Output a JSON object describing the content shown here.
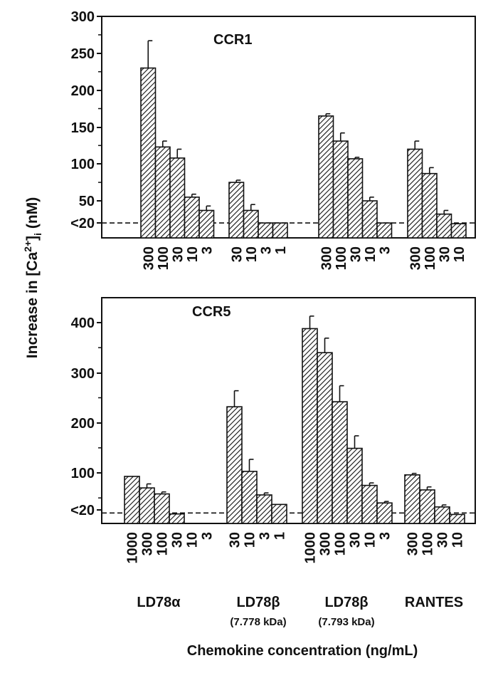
{
  "chart_data": [
    {
      "type": "bar",
      "title": "CCR1",
      "y_ticks": [
        "300",
        "250",
        "200",
        "150",
        "100",
        "50",
        "<20"
      ],
      "baseline_label": "<20",
      "ylim": [
        0,
        300
      ],
      "groups": [
        {
          "name": "LD78α",
          "concentrations": [
            "300",
            "100",
            "30",
            "10",
            "3"
          ],
          "values": [
            230,
            123,
            108,
            55,
            37
          ],
          "errors": [
            37,
            8,
            12,
            4,
            6
          ]
        },
        {
          "name": "LD78β (7.778 kDa)",
          "concentrations": [
            "30",
            "10",
            "3",
            "1"
          ],
          "values": [
            75,
            37,
            20,
            20
          ],
          "errors": [
            3,
            8,
            0,
            0
          ]
        },
        {
          "name": "LD78β (7.793 kDa)",
          "concentrations": [
            "300",
            "100",
            "30",
            "10",
            "3"
          ],
          "values": [
            165,
            131,
            107,
            50,
            20
          ],
          "errors": [
            3,
            11,
            2,
            5,
            0
          ]
        },
        {
          "name": "RANTES",
          "concentrations": [
            "300",
            "100",
            "30",
            "10"
          ],
          "values": [
            120,
            87,
            32,
            19
          ],
          "errors": [
            11,
            8,
            5,
            0
          ]
        }
      ]
    },
    {
      "type": "bar",
      "title": "CCR5",
      "y_ticks": [
        "400",
        "300",
        "200",
        "100",
        "<20"
      ],
      "baseline_label": "<20",
      "ylim": [
        0,
        450
      ],
      "groups": [
        {
          "name": "LD78α",
          "concentrations": [
            "1000",
            "300",
            "100",
            "30",
            "10",
            "3"
          ],
          "values": [
            93,
            70,
            58,
            18,
            null,
            null
          ],
          "errors": [
            0,
            8,
            4,
            0,
            0,
            0
          ]
        },
        {
          "name": "LD78β (7.778 kDa)",
          "concentrations": [
            "30",
            "10",
            "3",
            "1"
          ],
          "values": [
            232,
            103,
            56,
            37
          ],
          "errors": [
            32,
            24,
            4,
            0
          ]
        },
        {
          "name": "LD78β (7.793 kDa)",
          "concentrations": [
            "1000",
            "300",
            "100",
            "30",
            "10",
            "3"
          ],
          "values": [
            388,
            340,
            242,
            149,
            75,
            40
          ],
          "errors": [
            25,
            29,
            32,
            25,
            5,
            3
          ]
        },
        {
          "name": "RANTES",
          "concentrations": [
            "300",
            "100",
            "30",
            "10"
          ],
          "values": [
            96,
            66,
            32,
            17
          ],
          "errors": [
            3,
            6,
            4,
            0
          ]
        }
      ]
    }
  ],
  "shared": {
    "ylabel_prefix": "Increase in [Ca",
    "ylabel_sup": "2+",
    "ylabel_close": "]",
    "ylabel_sub": "i",
    "ylabel_unit": " (nM)",
    "xlabel": "Chemokine concentration  (ng/mL)",
    "group_labels": [
      {
        "name": "LD78α",
        "sub": ""
      },
      {
        "name": "LD78β",
        "sub": "(7.778 kDa)"
      },
      {
        "name": "LD78β",
        "sub": "(7.793 kDa)"
      },
      {
        "name": "RANTES",
        "sub": ""
      }
    ]
  }
}
